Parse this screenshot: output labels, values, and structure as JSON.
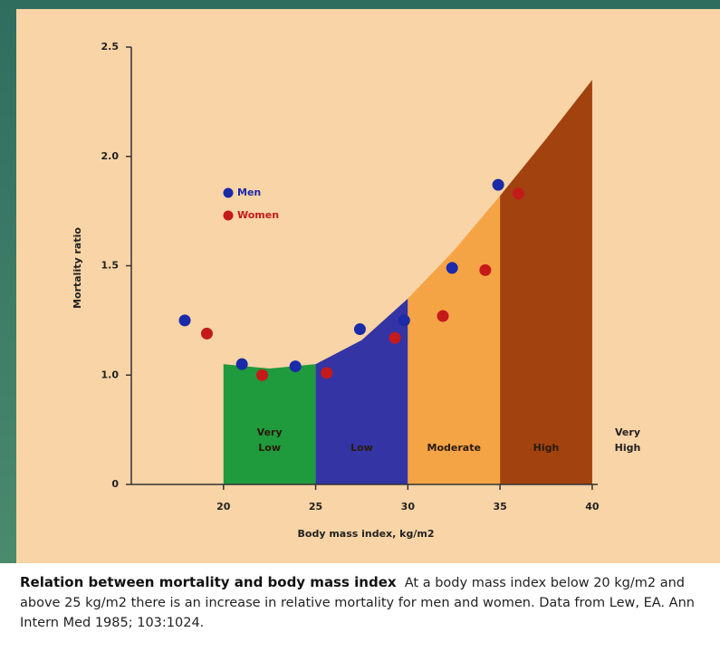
{
  "chart_data": {
    "type": "scatter",
    "x_label": "Body mass index, kg/m2",
    "y_label": "Mortality ratio",
    "xlim": [
      15,
      40.3
    ],
    "ylim": [
      0.5,
      2.5
    ],
    "xticks": [
      20,
      25,
      30,
      35,
      40
    ],
    "yticks": [
      {
        "value": 0.5,
        "label": "0"
      },
      {
        "value": 1.0,
        "label": "1.0"
      },
      {
        "value": 1.5,
        "label": "1.5"
      },
      {
        "value": 2.0,
        "label": "2.0"
      },
      {
        "value": 2.5,
        "label": "2.5"
      }
    ],
    "series": [
      {
        "name": "Men",
        "color": "#1a2aa8",
        "x": [
          17.9,
          21.0,
          23.9,
          27.4,
          29.8,
          32.4,
          34.9
        ],
        "values": [
          1.25,
          1.05,
          1.04,
          1.21,
          1.25,
          1.49,
          1.87
        ]
      },
      {
        "name": "Women",
        "color": "#c41a1a",
        "x": [
          19.1,
          22.1,
          25.6,
          29.3,
          31.9,
          34.2,
          36.0
        ],
        "values": [
          1.19,
          1.0,
          1.01,
          1.17,
          1.27,
          1.48,
          1.83
        ]
      }
    ],
    "bands": [
      {
        "label": [
          "Very",
          "Low"
        ],
        "color": "#1f9a3c",
        "x": [
          20,
          22.5,
          25
        ],
        "top": [
          1.05,
          1.03,
          1.05
        ]
      },
      {
        "label": [
          "Low"
        ],
        "color": "#3434a4",
        "x": [
          25,
          27.5,
          30
        ],
        "top": [
          1.05,
          1.16,
          1.35
        ]
      },
      {
        "label": [
          "Moderate"
        ],
        "color": "#f5a445",
        "x": [
          30,
          32.5,
          35
        ],
        "top": [
          1.35,
          1.57,
          1.82
        ]
      },
      {
        "label": [
          "High"
        ],
        "color": "#a2420f",
        "x": [
          35,
          37.5,
          40
        ],
        "top": [
          1.82,
          2.08,
          2.35
        ]
      }
    ],
    "outside_label": [
      "Very",
      "High"
    ]
  },
  "caption": {
    "title": "Relation between mortality and body mass index",
    "text": "At a body mass index below 20 kg/m2 and above 25 kg/m2 there is an increase in relative mortality for men and women. Data from Lew, EA. Ann Intern Med 1985; 103:1024."
  }
}
